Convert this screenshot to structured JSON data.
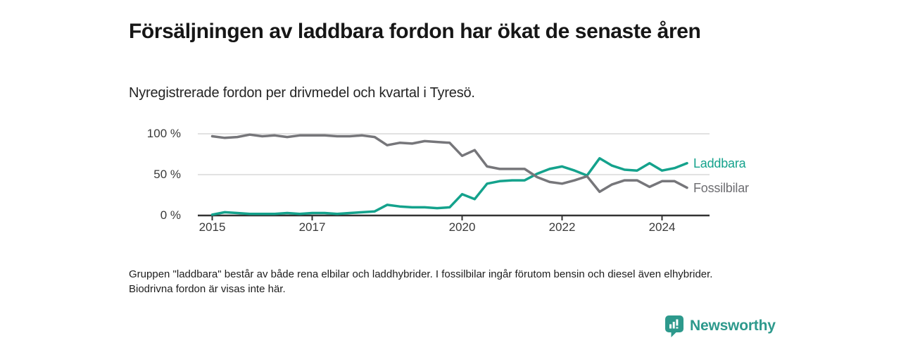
{
  "header": {
    "title": "Försäljningen av laddbara fordon har ökat de senaste åren",
    "subtitle": "Nyregistrerade fordon per drivmedel och kvartal i Tyresö."
  },
  "chart_data": {
    "type": "line",
    "x": [
      "2015-Q1",
      "2015-Q2",
      "2015-Q3",
      "2015-Q4",
      "2016-Q1",
      "2016-Q2",
      "2016-Q3",
      "2016-Q4",
      "2017-Q1",
      "2017-Q2",
      "2017-Q3",
      "2017-Q4",
      "2018-Q1",
      "2018-Q2",
      "2018-Q3",
      "2018-Q4",
      "2019-Q1",
      "2019-Q2",
      "2019-Q3",
      "2019-Q4",
      "2020-Q1",
      "2020-Q2",
      "2020-Q3",
      "2020-Q4",
      "2021-Q1",
      "2021-Q2",
      "2021-Q3",
      "2021-Q4",
      "2022-Q1",
      "2022-Q2",
      "2022-Q3",
      "2022-Q4",
      "2023-Q1",
      "2023-Q2",
      "2023-Q3",
      "2023-Q4",
      "2024-Q1",
      "2024-Q2",
      "2024-Q3"
    ],
    "series": [
      {
        "name": "Laddbara",
        "color": "#14a28c",
        "values": [
          1,
          4,
          3,
          2,
          2,
          2,
          3,
          2,
          3,
          3,
          2,
          3,
          4,
          5,
          13,
          11,
          10,
          10,
          9,
          10,
          26,
          20,
          39,
          42,
          43,
          43,
          51,
          57,
          60,
          55,
          49,
          70,
          61,
          56,
          55,
          64,
          55,
          58,
          64
        ]
      },
      {
        "name": "Fossilbilar",
        "color": "#76767a",
        "values": [
          97,
          95,
          96,
          99,
          97,
          98,
          96,
          98,
          98,
          98,
          97,
          97,
          98,
          96,
          86,
          89,
          88,
          91,
          90,
          89,
          73,
          80,
          60,
          57,
          57,
          57,
          47,
          41,
          39,
          43,
          48,
          29,
          38,
          43,
          43,
          35,
          42,
          42,
          34
        ]
      }
    ],
    "ylim": [
      0,
      100
    ],
    "yticks": [
      {
        "value": 0,
        "label": "0 %"
      },
      {
        "value": 50,
        "label": "50 %"
      },
      {
        "value": 100,
        "label": "100 %"
      }
    ],
    "xticks": [
      {
        "index": 0,
        "label": "2015"
      },
      {
        "index": 8,
        "label": "2017"
      },
      {
        "index": 20,
        "label": "2020"
      },
      {
        "index": 28,
        "label": "2022"
      },
      {
        "index": 36,
        "label": "2024"
      }
    ],
    "grid": "horizontal",
    "legend_position": "line-end-labels",
    "grid_color": "#d9d9d9",
    "axis_color": "#333333"
  },
  "footnote": "Gruppen \"laddbara\" består av både rena elbilar och laddhybrider. I fossilbilar ingår förutom bensin och diesel även elhybrider. Biodrivna fordon är visas inte här.",
  "branding": {
    "logo_text": "Newsworthy",
    "logo_icon": "chart-speech-bubble-icon",
    "logo_color": "#2d998c"
  }
}
